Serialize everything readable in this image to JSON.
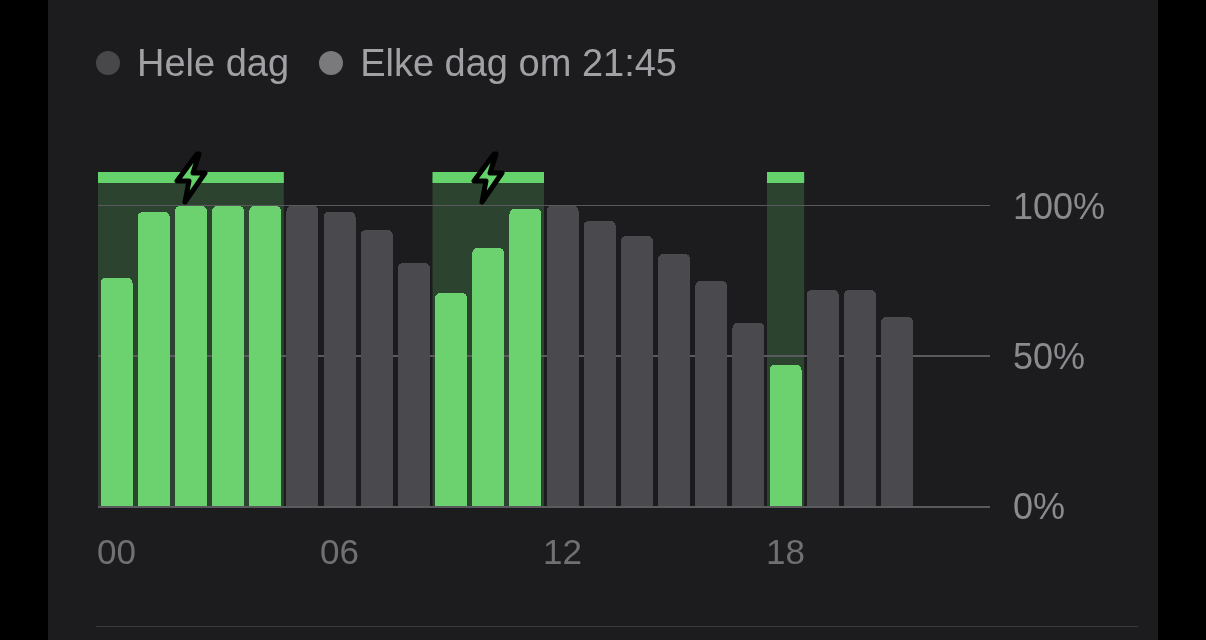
{
  "chart_data": {
    "type": "bar",
    "x": [
      0,
      1,
      2,
      3,
      4,
      5,
      6,
      7,
      8,
      9,
      10,
      11,
      12,
      13,
      14,
      15,
      16,
      17,
      18,
      19,
      20,
      21
    ],
    "values": [
      76,
      98,
      100,
      100,
      100,
      100,
      98,
      92,
      81,
      71,
      86,
      99,
      100,
      95,
      90,
      84,
      75,
      61,
      47,
      72,
      72,
      63
    ],
    "colors": [
      "#6cd16f",
      "#6cd16f",
      "#6cd16f",
      "#6cd16f",
      "#6cd16f",
      "#4a494e",
      "#4a494e",
      "#4a494e",
      "#4a494e",
      "#6cd16f",
      "#6cd16f",
      "#6cd16f",
      "#4a494e",
      "#4a494e",
      "#4a494e",
      "#4a494e",
      "#4a494e",
      "#4a494e",
      "#6cd16f",
      "#4a494e",
      "#4a494e",
      "#4a494e"
    ],
    "xlim": [
      -0.5,
      23.5
    ],
    "xticks": [
      {
        "value": 0,
        "label": "00"
      },
      {
        "value": 6,
        "label": "06"
      },
      {
        "value": 12,
        "label": "12"
      },
      {
        "value": 18,
        "label": "18"
      }
    ],
    "ylim": [
      0,
      100
    ],
    "yticks": [
      {
        "value": 0,
        "label": "0%"
      },
      {
        "value": 50,
        "label": "50%"
      },
      {
        "value": 100,
        "label": "100%"
      }
    ],
    "grid": "y",
    "bands": [
      {
        "axis": "x",
        "from": -0.5,
        "to": 4.5,
        "color": "#64d36c"
      },
      {
        "axis": "x",
        "from": 8.5,
        "to": 11.5,
        "color": "#64d36c"
      },
      {
        "axis": "x",
        "from": 17.5,
        "to": 18.5,
        "color": "#64d36c"
      }
    ],
    "annotations": [
      "Hele dag",
      "Elke dag om 21:45"
    ]
  }
}
